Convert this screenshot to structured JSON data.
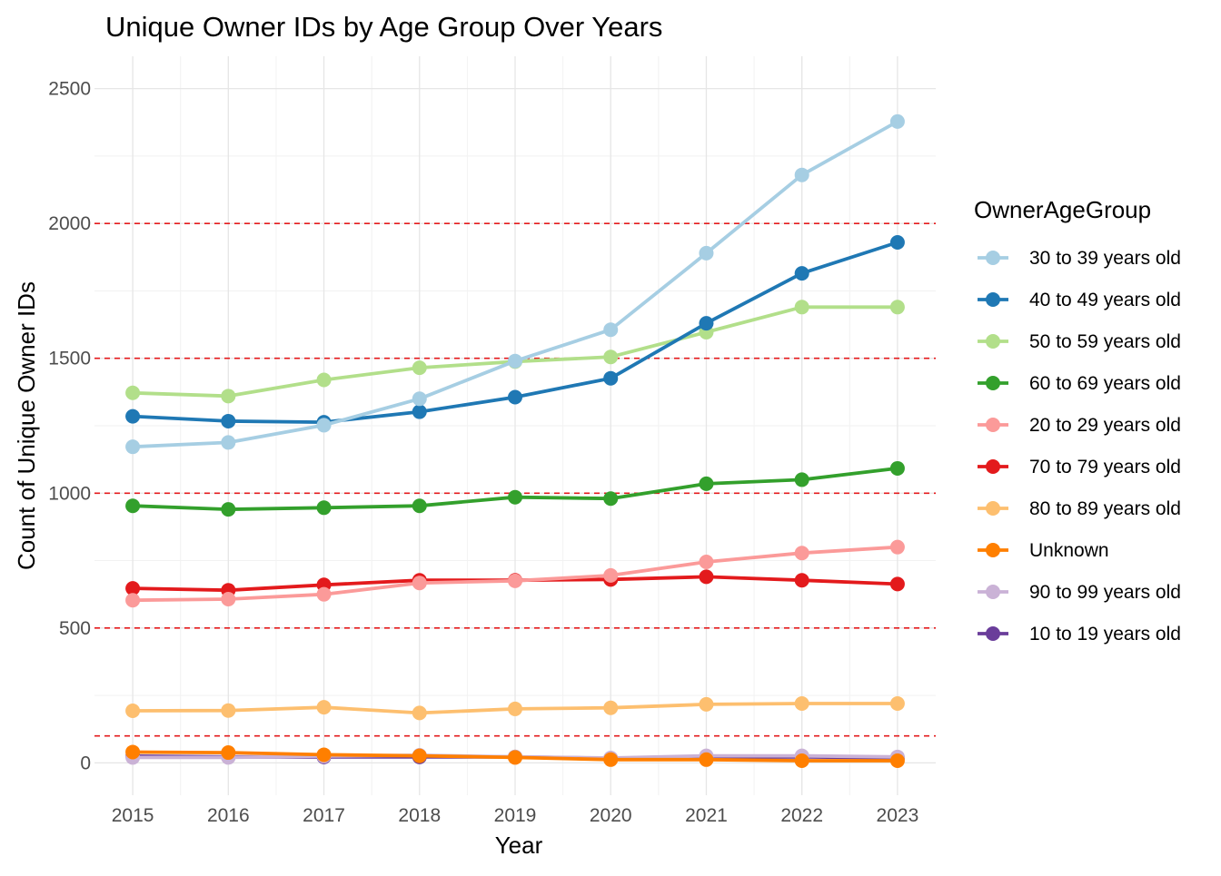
{
  "chart_data": {
    "type": "line",
    "title": "Unique Owner IDs by Age Group Over Years",
    "xlabel": "Year",
    "ylabel": "Count of Unique Owner IDs",
    "x": [
      2015,
      2016,
      2017,
      2018,
      2019,
      2020,
      2021,
      2022,
      2023
    ],
    "xlim": [
      2014.6,
      2023.4
    ],
    "ylim": [
      -120,
      2620
    ],
    "y_ticks": [
      0,
      500,
      1000,
      1500,
      2000,
      2500
    ],
    "y_minor_ticks": [
      250,
      750,
      1250,
      1750,
      2250
    ],
    "grid": true,
    "reference_lines": {
      "values": [
        100,
        500,
        1000,
        1500,
        2000
      ],
      "color": "#e41a1c",
      "style": "dashed"
    },
    "legend": {
      "title": "OwnerAgeGroup",
      "position": "right"
    },
    "series": [
      {
        "name": "30 to 39 years old",
        "color": "#a6cee3",
        "values": [
          1172,
          1188,
          1252,
          1350,
          1490,
          1606,
          1890,
          2180,
          2378
        ]
      },
      {
        "name": "40 to 49 years old",
        "color": "#1f78b4",
        "values": [
          1285,
          1267,
          1263,
          1302,
          1356,
          1426,
          1630,
          1815,
          1930
        ]
      },
      {
        "name": "50 to 59 years old",
        "color": "#b2df8a",
        "values": [
          1372,
          1360,
          1420,
          1465,
          1488,
          1505,
          1597,
          1690,
          1690
        ]
      },
      {
        "name": "60 to 69 years old",
        "color": "#33a02c",
        "values": [
          953,
          940,
          946,
          953,
          985,
          980,
          1035,
          1050,
          1092
        ]
      },
      {
        "name": "20 to 29 years old",
        "color": "#fb9a99",
        "values": [
          603,
          607,
          625,
          667,
          675,
          695,
          745,
          778,
          800
        ]
      },
      {
        "name": "70 to 79 years old",
        "color": "#e31a1c",
        "values": [
          647,
          640,
          660,
          677,
          677,
          680,
          690,
          677,
          663
        ]
      },
      {
        "name": "80 to 89 years old",
        "color": "#fdbf6f",
        "values": [
          193,
          194,
          206,
          185,
          200,
          204,
          217,
          220,
          220
        ]
      },
      {
        "name": "Unknown",
        "color": "#ff7f00",
        "values": [
          40,
          38,
          30,
          26,
          20,
          12,
          12,
          8,
          8
        ]
      },
      {
        "name": "90 to 99 years old",
        "color": "#cab2d6",
        "values": [
          20,
          20,
          25,
          28,
          22,
          18,
          26,
          26,
          22
        ]
      },
      {
        "name": "10 to 19 years old",
        "color": "#6a3d9a",
        "values": [
          25,
          22,
          22,
          22,
          22,
          17,
          20,
          22,
          18
        ]
      }
    ]
  }
}
